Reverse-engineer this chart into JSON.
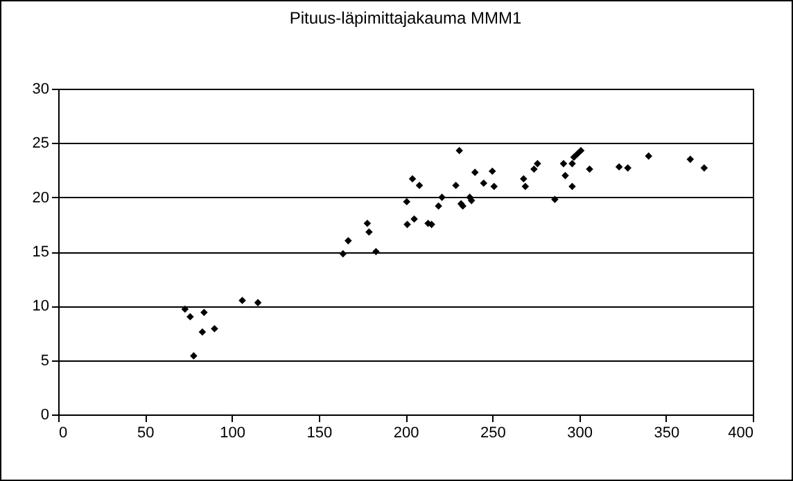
{
  "chart_data": {
    "type": "scatter",
    "title": "Pituus-läpimittajakauma MMM1",
    "x": [
      73,
      76,
      84,
      83,
      90,
      78,
      106,
      115,
      164,
      167,
      178,
      179,
      183,
      200.7,
      201,
      204,
      205,
      208,
      213,
      215,
      219,
      221,
      229,
      231,
      232,
      233,
      237,
      238,
      240,
      245,
      250,
      251,
      268,
      269,
      274,
      276,
      286,
      291,
      292,
      296,
      296,
      297,
      299,
      301,
      306,
      323,
      328,
      340,
      364,
      372
    ],
    "series": [
      {
        "color": "#000000",
        "values": [
          9.7,
          9.0,
          9.4,
          7.6,
          7.9,
          5.4,
          10.5,
          10.3,
          14.8,
          16.0,
          17.6,
          16.8,
          15.0,
          19.6,
          17.5,
          21.7,
          18.0,
          21.1,
          17.6,
          17.5,
          19.2,
          20.0,
          21.1,
          24.3,
          19.4,
          19.2,
          20.0,
          19.7,
          22.3,
          21.3,
          22.4,
          21.0,
          21.7,
          21.0,
          22.6,
          23.1,
          19.8,
          23.1,
          22.0,
          23.1,
          21.0,
          23.7,
          24.0,
          24.3,
          22.6,
          22.8,
          22.7,
          23.8,
          23.5,
          22.7
        ]
      }
    ],
    "xlim": [
      0,
      400
    ],
    "xticks": [
      0,
      50,
      100,
      150,
      200,
      250,
      300,
      350,
      400
    ],
    "ylim": [
      0,
      30
    ],
    "yticks": [
      0,
      5,
      10,
      15,
      20,
      25,
      30
    ],
    "grid": "y",
    "marker": "diamond",
    "legend": false
  }
}
